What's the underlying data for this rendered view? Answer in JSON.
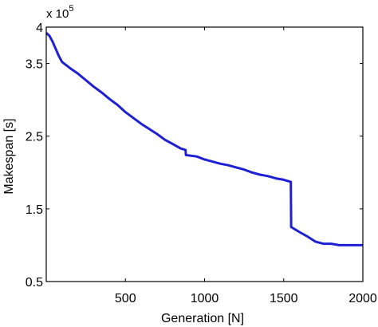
{
  "chart_data": {
    "type": "line",
    "xlabel": "Generation [N]",
    "ylabel": "Makespan [s]",
    "y_multiplier_base": "x 10",
    "y_multiplier_exp": "5",
    "xlim": [
      0,
      2000
    ],
    "ylim": [
      0.5,
      4
    ],
    "xticks": [
      500,
      1000,
      1500,
      2000
    ],
    "yticks": [
      0.5,
      1.5,
      2.5,
      3.5,
      4
    ],
    "ytick_labels": [
      "0.5",
      "1.5",
      "2.5",
      "3.5",
      "4"
    ],
    "grid": false,
    "line_color": "#1f1fd6",
    "series": [
      {
        "x": [
          0,
          20,
          40,
          60,
          80,
          100,
          130,
          160,
          200,
          250,
          300,
          350,
          400,
          450,
          500,
          550,
          600,
          650,
          700,
          750,
          800,
          850,
          880,
          882,
          950,
          1000,
          1050,
          1100,
          1150,
          1200,
          1250,
          1300,
          1350,
          1400,
          1450,
          1500,
          1530,
          1545,
          1547,
          1570,
          1600,
          1650,
          1700,
          1750,
          1800,
          1850,
          1900,
          1950,
          2000
        ],
        "y": [
          3.92,
          3.88,
          3.8,
          3.7,
          3.6,
          3.52,
          3.47,
          3.42,
          3.36,
          3.27,
          3.18,
          3.1,
          3.01,
          2.93,
          2.83,
          2.75,
          2.67,
          2.6,
          2.53,
          2.45,
          2.39,
          2.33,
          2.31,
          2.24,
          2.22,
          2.18,
          2.15,
          2.12,
          2.1,
          2.07,
          2.04,
          2.0,
          1.97,
          1.95,
          1.92,
          1.9,
          1.88,
          1.87,
          1.25,
          1.22,
          1.18,
          1.12,
          1.05,
          1.02,
          1.02,
          1.0,
          1.0,
          1.0,
          1.0
        ]
      }
    ]
  }
}
